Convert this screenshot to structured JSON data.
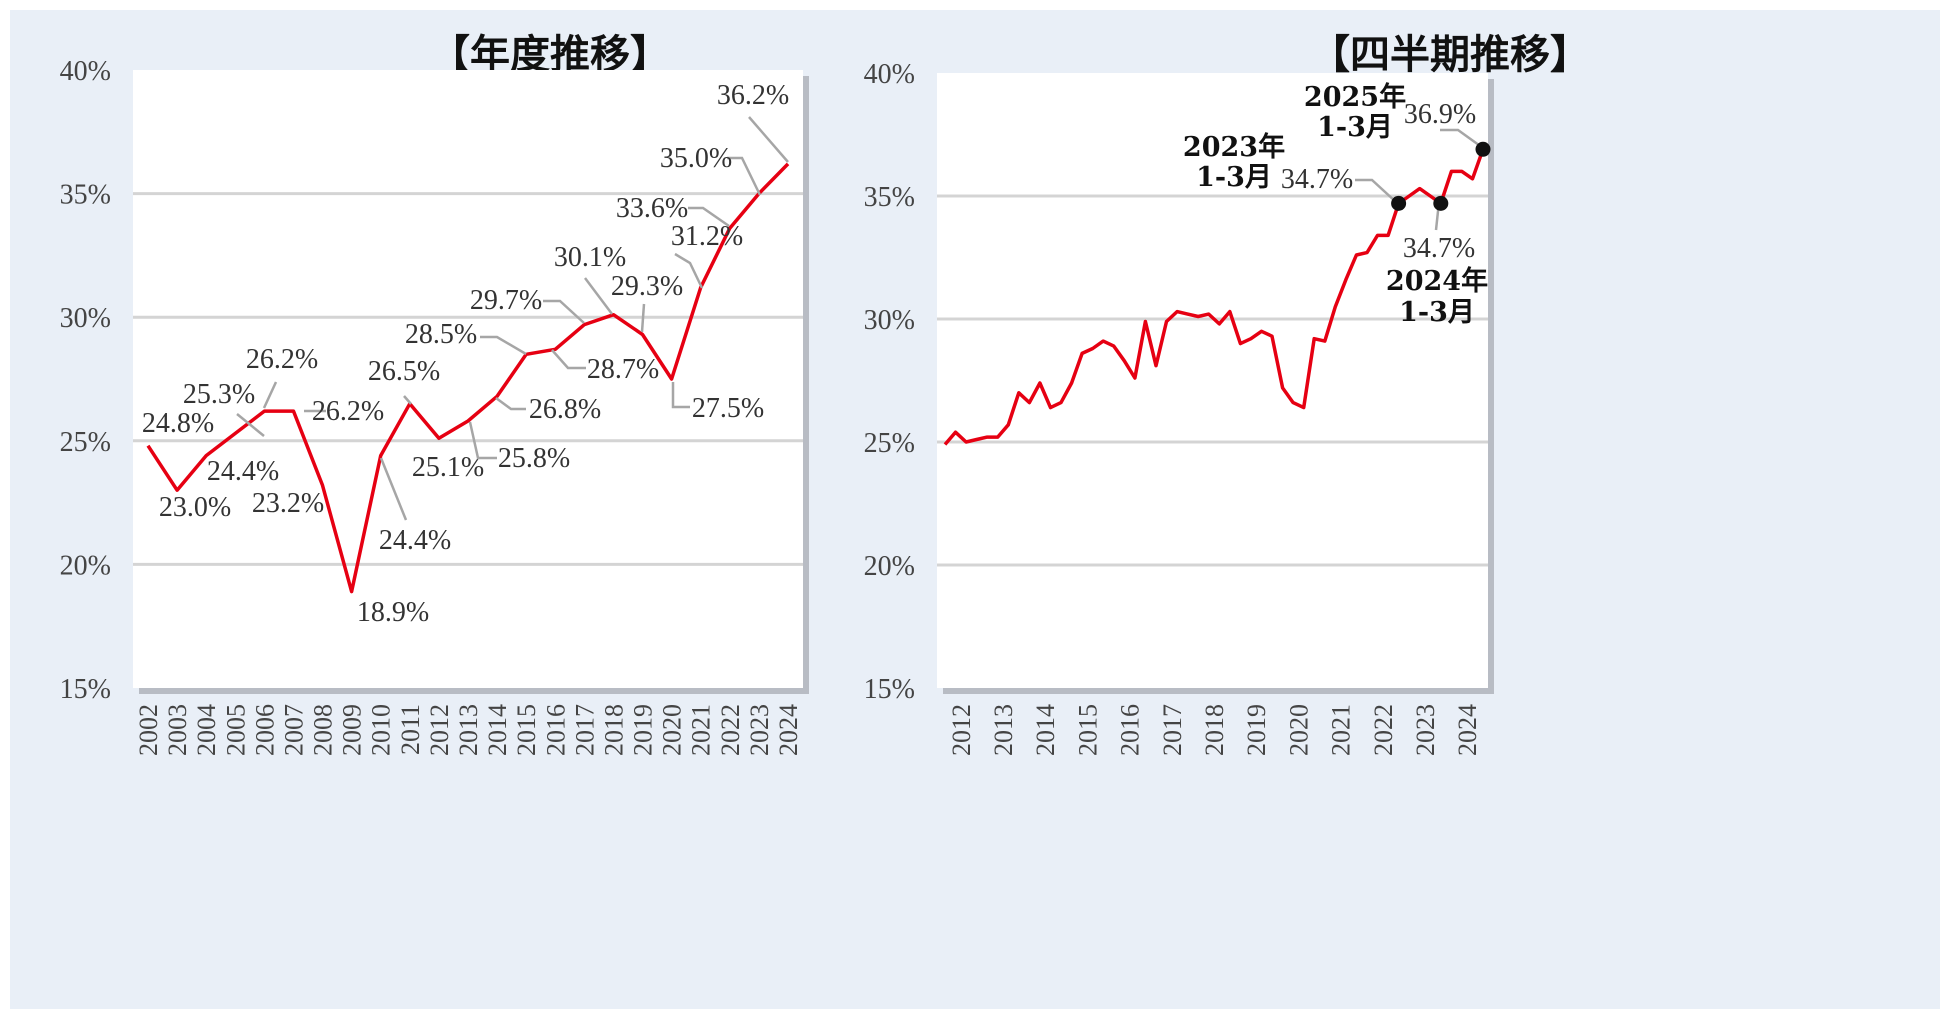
{
  "chart_data": [
    {
      "type": "line",
      "title": "【年度推移】",
      "xlabel": "",
      "ylabel": "",
      "ylim": [
        15,
        40
      ],
      "yticks": [
        "15%",
        "20%",
        "25%",
        "30%",
        "35%",
        "40%"
      ],
      "categories": [
        "2002",
        "2003",
        "2004",
        "2005",
        "2006",
        "2007",
        "2008",
        "2009",
        "2010",
        "2011",
        "2012",
        "2013",
        "2014",
        "2015",
        "2016",
        "2017",
        "2018",
        "2019",
        "2020",
        "2021",
        "2022",
        "2023",
        "2024"
      ],
      "series": [
        {
          "name": "年度",
          "color": "#e60012",
          "values": [
            24.8,
            23.0,
            24.4,
            25.3,
            26.2,
            26.2,
            23.2,
            18.9,
            24.4,
            26.5,
            25.1,
            25.8,
            26.8,
            28.5,
            28.7,
            29.7,
            30.1,
            29.3,
            27.5,
            31.2,
            33.6,
            35.0,
            36.2
          ]
        }
      ],
      "data_labels": [
        "24.8%",
        "23.0%",
        "24.4%",
        "25.3%",
        "26.2%",
        "26.2%",
        "23.2%",
        "18.9%",
        "24.4%",
        "26.5%",
        "25.1%",
        "25.8%",
        "26.8%",
        "28.5%",
        "28.7%",
        "29.7%",
        "30.1%",
        "29.3%",
        "27.5%",
        "31.2%",
        "33.6%",
        "35.0%",
        "36.2%"
      ],
      "grid": true
    },
    {
      "type": "line",
      "title": "【四半期推移】",
      "xlabel": "",
      "ylabel": "",
      "ylim": [
        15,
        40
      ],
      "yticks": [
        "15%",
        "20%",
        "25%",
        "30%",
        "35%",
        "40%"
      ],
      "x_labels": [
        "2012",
        "2013",
        "2014",
        "2015",
        "2016",
        "2017",
        "2018",
        "2019",
        "2020",
        "2021",
        "2022",
        "2023",
        "2024"
      ],
      "series": [
        {
          "name": "四半期",
          "color": "#e60012",
          "values": [
            24.9,
            25.4,
            25.0,
            25.1,
            25.2,
            25.2,
            25.7,
            27.0,
            26.6,
            27.4,
            26.4,
            26.6,
            27.4,
            28.6,
            28.8,
            29.1,
            28.9,
            28.3,
            27.6,
            29.9,
            28.1,
            29.9,
            30.3,
            30.2,
            30.1,
            30.2,
            29.8,
            30.3,
            29.0,
            29.2,
            29.5,
            29.3,
            27.2,
            26.6,
            26.4,
            29.2,
            29.1,
            30.5,
            31.6,
            32.6,
            32.7,
            33.4,
            33.4,
            34.7,
            35.0,
            35.3,
            35.0,
            34.7,
            36.0,
            36.0,
            35.7,
            36.9
          ]
        }
      ],
      "annotations": [
        {
          "index": 43,
          "value_label": "34.7%",
          "period_year": "2023年",
          "period_months": "1-3月"
        },
        {
          "index": 47,
          "value_label": "34.7%",
          "period_year": "2024年",
          "period_months": "1-3月"
        },
        {
          "index": 51,
          "value_label": "36.9%",
          "period_year": "2025年",
          "period_months": "1-3月"
        }
      ],
      "grid": true
    }
  ]
}
